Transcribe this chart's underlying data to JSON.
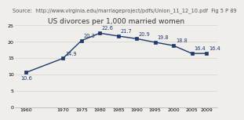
{
  "title": "US divorces per 1,000 married women",
  "source": "Source:  http://www.virginia.edu/marriageproject/pdfs/Union_11_12_10.pdf  Fig 5 P 89",
  "x": [
    1960,
    1970,
    1975,
    1980,
    1985,
    1990,
    1995,
    2000,
    2005,
    2009
  ],
  "y": [
    10.6,
    14.9,
    20.3,
    22.6,
    21.7,
    20.9,
    19.8,
    18.8,
    16.4,
    16.4
  ],
  "line_color": "#1e3a6e",
  "marker": "s",
  "marker_size": 3.0,
  "xlim": [
    1957,
    2012
  ],
  "ylim": [
    0,
    25
  ],
  "yticks": [
    0,
    5,
    10,
    15,
    20,
    25
  ],
  "xticks": [
    1960,
    1970,
    1975,
    1980,
    1985,
    1990,
    1995,
    2000,
    2005,
    2009
  ],
  "bg_color": "#f0eeea",
  "plot_bg": "#f0eeea",
  "grid_color": "#d8d8d8",
  "title_fontsize": 6.5,
  "source_fontsize": 4.8,
  "label_fontsize": 4.8,
  "tick_fontsize": 4.5,
  "annotations": {
    "1960": {
      "text": "10.6",
      "ox": -5,
      "oy": -7
    },
    "1970": {
      "text": "14.9",
      "ox": 2,
      "oy": 3
    },
    "1975": {
      "text": "20.3",
      "ox": 2,
      "oy": 3
    },
    "1980": {
      "text": "22.6",
      "ox": 2,
      "oy": 3
    },
    "1985": {
      "text": "21.7",
      "ox": 2,
      "oy": 3
    },
    "1990": {
      "text": "20.9",
      "ox": 2,
      "oy": 3
    },
    "1995": {
      "text": "19.8",
      "ox": 2,
      "oy": 3
    },
    "2000": {
      "text": "18.8",
      "ox": 2,
      "oy": 3
    },
    "2005": {
      "text": "16.4",
      "ox": 2,
      "oy": 3
    },
    "2009": {
      "text": "16.4",
      "ox": 2,
      "oy": 3
    }
  }
}
